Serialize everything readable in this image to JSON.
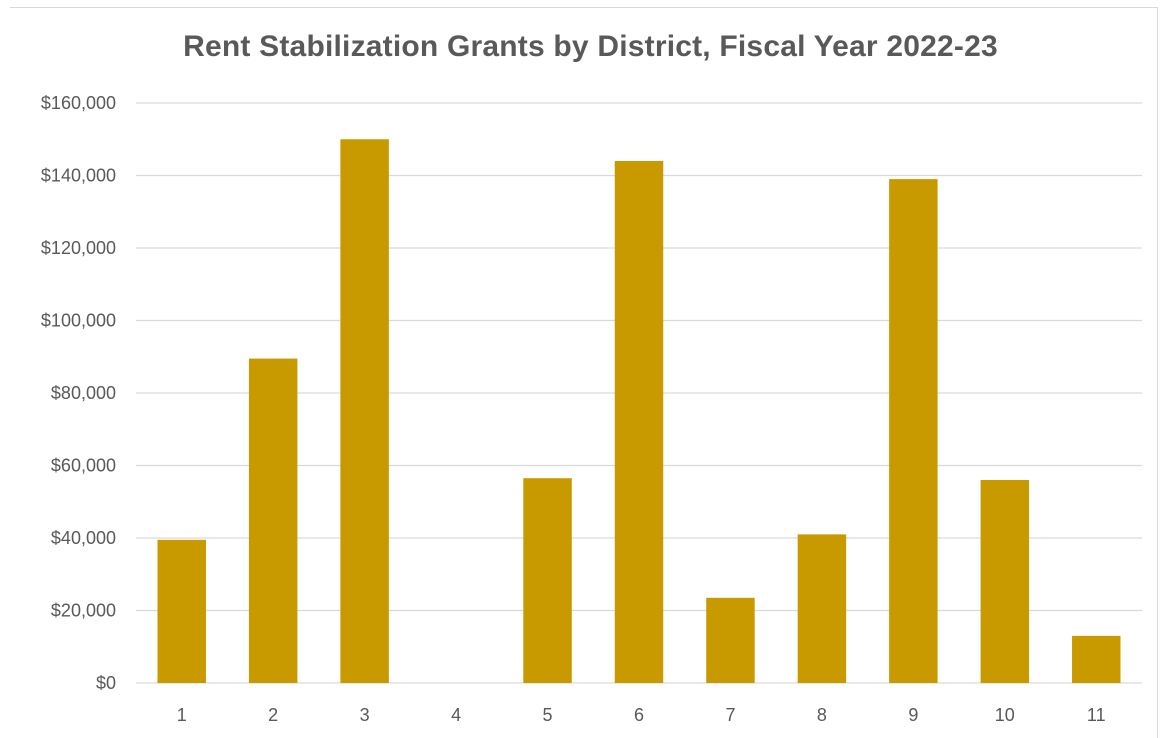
{
  "chart_data": {
    "type": "bar",
    "title": "Rent Stabilization Grants by District, Fiscal Year 2022-23",
    "xlabel": "",
    "ylabel": "",
    "categories": [
      "1",
      "2",
      "3",
      "4",
      "5",
      "6",
      "7",
      "8",
      "9",
      "10",
      "11"
    ],
    "values": [
      39500,
      89500,
      150000,
      0,
      56500,
      144000,
      23500,
      41000,
      139000,
      56000,
      13000
    ],
    "ylim": [
      0,
      160000
    ],
    "yticks": [
      0,
      20000,
      40000,
      60000,
      80000,
      100000,
      120000,
      140000,
      160000
    ],
    "ytick_labels": [
      "$0",
      "$20,000",
      "$40,000",
      "$60,000",
      "$80,000",
      "$100,000",
      "$120,000",
      "$140,000",
      "$160,000"
    ],
    "grid": true,
    "legend": "none",
    "colors": {
      "bar": "#c99a00",
      "grid": "#d9d9d9",
      "text": "#595959"
    }
  }
}
